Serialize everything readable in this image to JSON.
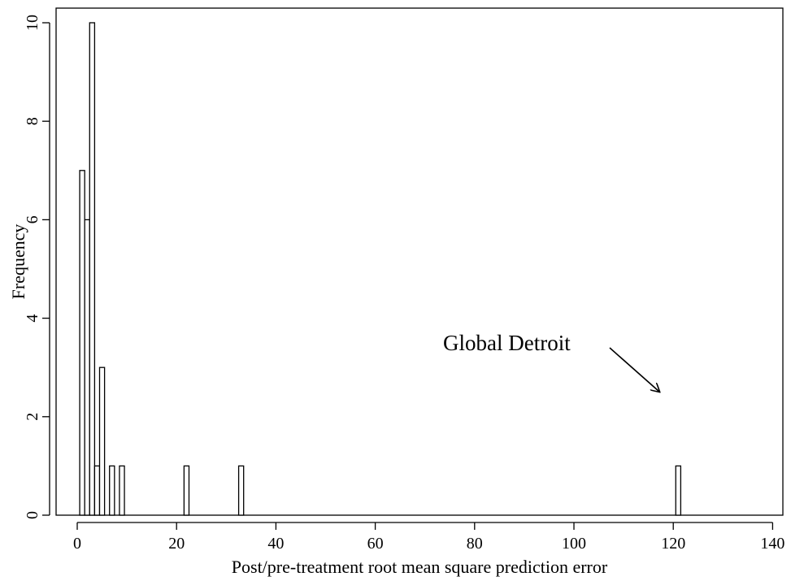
{
  "chart_data": {
    "type": "bar",
    "xlabel": "Post/pre-treatment root mean square prediction error",
    "ylabel": "Frequency",
    "xlim": [
      0,
      140
    ],
    "ylim": [
      0,
      10
    ],
    "bin_width": 1,
    "x_ticks": [
      0,
      20,
      40,
      60,
      80,
      100,
      120,
      140
    ],
    "y_ticks": [
      0,
      2,
      4,
      6,
      8,
      10
    ],
    "bins": [
      {
        "x": 1,
        "value": 7
      },
      {
        "x": 2,
        "value": 6
      },
      {
        "x": 3,
        "value": 10
      },
      {
        "x": 4,
        "value": 1
      },
      {
        "x": 5,
        "value": 3
      },
      {
        "x": 7,
        "value": 1
      },
      {
        "x": 9,
        "value": 1
      },
      {
        "x": 22,
        "value": 1
      },
      {
        "x": 33,
        "value": 1
      },
      {
        "x": 121,
        "value": 1
      }
    ],
    "annotation": {
      "text": "Global Detroit",
      "points_to_x": 121
    },
    "grid": false,
    "legend": "none"
  }
}
